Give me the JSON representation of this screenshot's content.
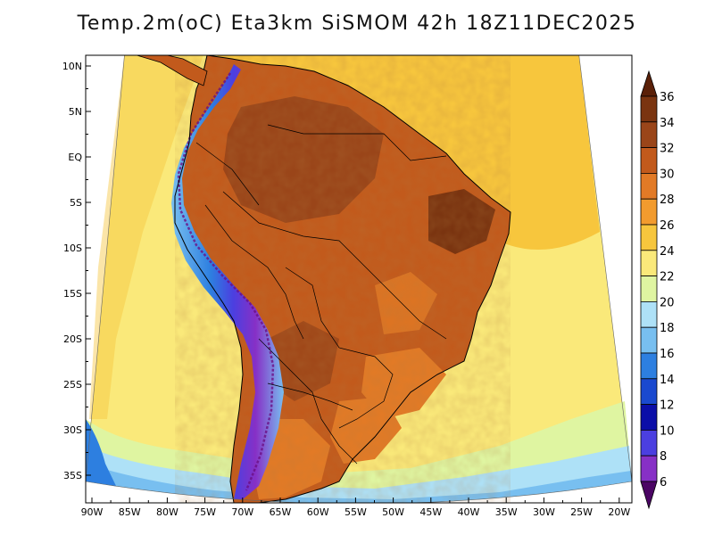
{
  "title": "Temp.2m(oC) Eta3km SiSMOM 42h 18Z11DEC2025",
  "map": {
    "lat_labels": [
      "10N",
      "5N",
      "EQ",
      "5S",
      "10S",
      "15S",
      "20S",
      "25S",
      "30S",
      "35S"
    ],
    "lon_labels": [
      "90W",
      "85W",
      "80W",
      "75W",
      "70W",
      "65W",
      "60W",
      "55W",
      "50W",
      "45W",
      "40W",
      "35W",
      "30W",
      "25W",
      "20W"
    ],
    "lat_range": [
      -38,
      12
    ],
    "lon_range": [
      -91,
      -20
    ]
  },
  "colorbar": {
    "labels": [
      "36",
      "34",
      "32",
      "30",
      "28",
      "26",
      "24",
      "22",
      "20",
      "18",
      "16",
      "14",
      "12",
      "10",
      "8",
      "6"
    ],
    "colors": [
      "#7a3410",
      "#9a4519",
      "#c25a1c",
      "#e27a26",
      "#f29b2e",
      "#f7c63d",
      "#fae97a",
      "#dff5a1",
      "#aee1f7",
      "#78bff0",
      "#2d7fe0",
      "#1a49cf",
      "#0b0ea8",
      "#4b3fe0",
      "#8730c6",
      "#6b0f84"
    ],
    "over_color": "#5a2008",
    "under_color": "#4b0564"
  }
}
